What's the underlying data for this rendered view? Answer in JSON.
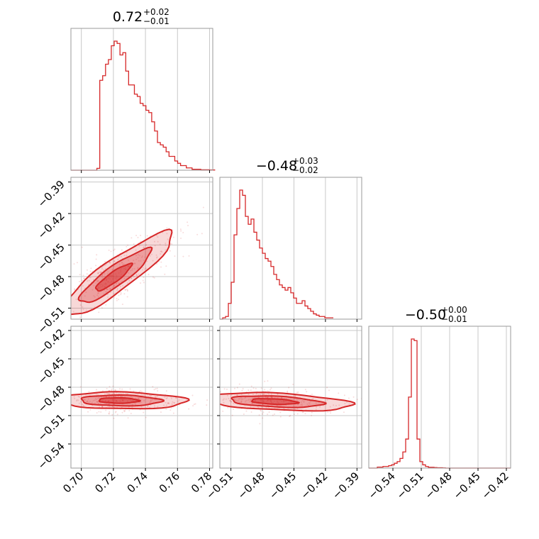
{
  "chart_data": {
    "type": "corner",
    "color": "#d62728",
    "params": [
      {
        "title": {
          "median": "0.72",
          "plus": "+0.02",
          "minus": "−0.01"
        },
        "range": [
          0.6935,
          0.782
        ],
        "ticks": [
          0.7,
          0.72,
          0.74,
          0.76,
          0.78
        ],
        "tick_labels": [
          "0.70",
          "0.72",
          "0.74",
          "0.76",
          "0.78"
        ]
      },
      {
        "title": {
          "median": "−0.48",
          "plus": "+0.03",
          "minus": "−0.02"
        },
        "range": [
          -0.5205,
          -0.3855
        ],
        "ticks": [
          -0.51,
          -0.48,
          -0.45,
          -0.42,
          -0.39
        ],
        "tick_labels": [
          "−0.51",
          "−0.48",
          "−0.45",
          "−0.42",
          "−0.39"
        ]
      },
      {
        "title": {
          "median": "−0.50",
          "plus": "+0.00",
          "minus": "−0.01"
        },
        "range": [
          -0.5655,
          -0.4155
        ],
        "ticks": [
          -0.54,
          -0.51,
          -0.48,
          -0.45,
          -0.42
        ],
        "tick_labels": [
          "−0.54",
          "−0.51",
          "−0.48",
          "−0.45",
          "−0.42"
        ]
      }
    ],
    "histograms": [
      {
        "param": 0,
        "bin_edges_start": 0.6935,
        "bin_width": 0.0018,
        "counts": [
          0,
          0,
          0,
          0,
          0,
          0,
          0,
          0,
          0,
          0.8,
          39,
          41,
          46,
          48,
          54,
          56,
          55,
          50,
          51,
          43,
          37,
          37,
          33,
          32,
          29,
          28,
          26,
          25,
          21,
          17,
          12,
          11,
          10,
          8,
          6,
          6,
          4,
          3,
          2,
          2,
          1,
          1,
          0.4,
          0.4,
          0.4,
          0.2,
          0.2,
          0.2,
          0.1,
          0.1
        ]
      },
      {
        "param": 1,
        "bin_edges_start": -0.5205,
        "bin_width": 0.0027,
        "counts": [
          0,
          0.5,
          1,
          6,
          14,
          32,
          42,
          49,
          47,
          39,
          36,
          38,
          33,
          30,
          27,
          25,
          23,
          22,
          20,
          17,
          15,
          13,
          12,
          11,
          12,
          10,
          8,
          6,
          6,
          7,
          5,
          4,
          3,
          2,
          1.5,
          1,
          1,
          0.5,
          0.5,
          0.5
        ]
      },
      {
        "param": 2,
        "bin_edges_start": -0.5655,
        "bin_width": 0.003,
        "counts": [
          0,
          0,
          0,
          0.6,
          0.6,
          1,
          1,
          1.5,
          2,
          3,
          4,
          6,
          10,
          18,
          44,
          80,
          79,
          18,
          4,
          2,
          1,
          0.5,
          0.5,
          0.3,
          0.2,
          0.2,
          0.1,
          0,
          0,
          0,
          0,
          0,
          0,
          0,
          0,
          0,
          0,
          0,
          0,
          0,
          0,
          0,
          0,
          0,
          0,
          0,
          0,
          0,
          0,
          0
        ]
      }
    ],
    "joint": [
      {
        "x_param": 0,
        "y_param": 1,
        "center": [
          0.719,
          -0.482
        ],
        "slope": 1.17,
        "spread_along": 0.021,
        "spread_across": 0.0055
      },
      {
        "x_param": 0,
        "y_param": 2,
        "center": [
          0.722,
          -0.494
        ],
        "slope": -0.02,
        "spread_along": 0.016,
        "spread_across": 0.004
      },
      {
        "x_param": 1,
        "y_param": 2,
        "center": [
          -0.471,
          -0.495
        ],
        "slope": -0.05,
        "spread_along": 0.028,
        "spread_across": 0.004
      }
    ],
    "grid": true,
    "contour_levels": 3
  }
}
